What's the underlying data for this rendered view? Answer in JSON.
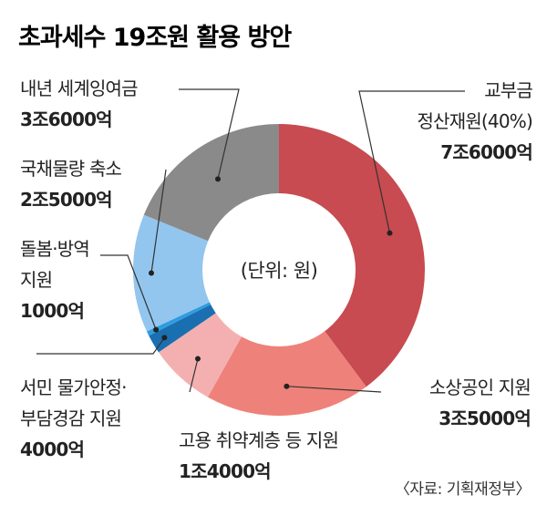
{
  "title": "초과세수 19조원 활용 방안",
  "unit_note": "(단위: 원)",
  "source": "〈자료: 기획재정부〉",
  "chart_data": {
    "type": "pie",
    "subtype": "donut",
    "title": "초과세수 19조원 활용 방안",
    "unit": "억원",
    "slices": [
      {
        "label_lines": [
          "교부금",
          "정산재원(40%)"
        ],
        "value": 76000,
        "value_label": "7조6000억",
        "color": "#c74b50"
      },
      {
        "label_lines": [
          "소상공인 지원"
        ],
        "value": 35000,
        "value_label": "3조5000억",
        "color": "#ee8179"
      },
      {
        "label_lines": [
          "고용 취약계층 등 지원"
        ],
        "value": 14000,
        "value_label": "1조4000억",
        "color": "#f4b0b0"
      },
      {
        "label_lines": [
          "서민 물가안정·",
          "부담경감 지원"
        ],
        "value": 4000,
        "value_label": "4000억",
        "color": "#1a6fb0"
      },
      {
        "label_lines": [
          "돌봄·방역",
          "지원"
        ],
        "value": 1000,
        "value_label": "1000억",
        "color": "#2f9ce0"
      },
      {
        "label_lines": [
          "국채물량 축소"
        ],
        "value": 25000,
        "value_label": "2조5000억",
        "color": "#93c6ee"
      },
      {
        "label_lines": [
          "내년 세계잉여금"
        ],
        "value": 36000,
        "value_label": "3조6000억",
        "color": "#8a8a8a"
      }
    ]
  }
}
